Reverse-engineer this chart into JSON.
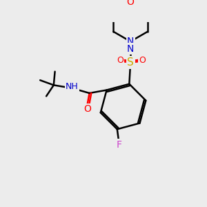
{
  "bg_color": "#ececec",
  "bond_color": "#000000",
  "bond_lw": 1.8,
  "atom_colors": {
    "O": "#ff0000",
    "N": "#0000cc",
    "S": "#ccaa00",
    "F": "#cc44cc",
    "H": "#447777",
    "C": "#000000"
  },
  "font_size": 9,
  "font_size_small": 8
}
